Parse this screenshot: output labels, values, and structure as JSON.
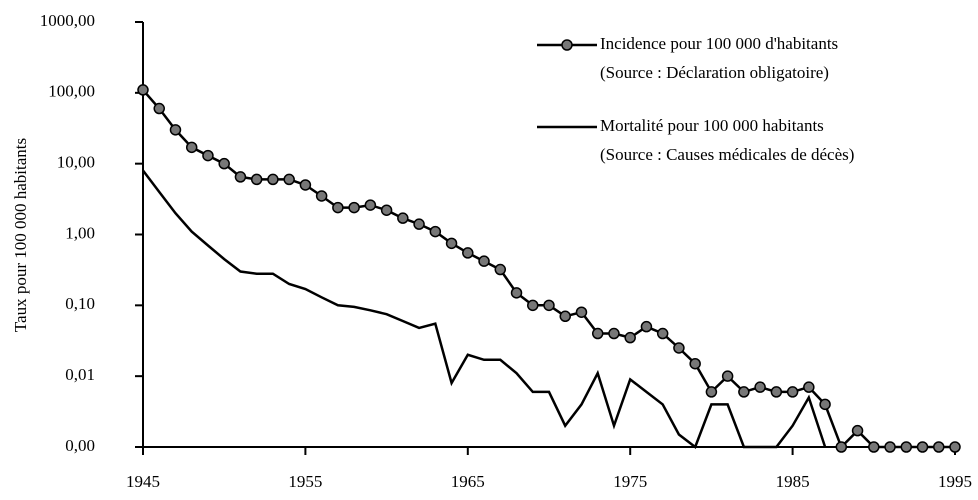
{
  "chart_data": {
    "type": "line",
    "y_label": "Taux pour 100 000 habitants",
    "log_scale": true,
    "x": [
      1945,
      1946,
      1947,
      1948,
      1949,
      1950,
      1951,
      1952,
      1953,
      1954,
      1955,
      1956,
      1957,
      1958,
      1959,
      1960,
      1961,
      1962,
      1963,
      1964,
      1965,
      1966,
      1967,
      1968,
      1969,
      1970,
      1971,
      1972,
      1973,
      1974,
      1975,
      1976,
      1977,
      1978,
      1979,
      1980,
      1981,
      1982,
      1983,
      1984,
      1985,
      1986,
      1987,
      1988,
      1989,
      1990,
      1991,
      1992,
      1993,
      1994,
      1995
    ],
    "series": [
      {
        "name": "Incidence pour 100 000 d'habitants",
        "source": "(Source : Déclaration obligatoire)",
        "color": "#000000",
        "marker": true,
        "values": [
          110,
          60,
          30,
          17,
          13,
          10,
          6.5,
          6,
          6,
          6,
          5,
          3.5,
          2.4,
          2.4,
          2.6,
          2.2,
          1.7,
          1.4,
          1.1,
          0.75,
          0.55,
          0.42,
          0.32,
          0.15,
          0.1,
          0.1,
          0.07,
          0.08,
          0.04,
          0.04,
          0.035,
          0.05,
          0.04,
          0.025,
          0.015,
          0.006,
          0.01,
          0.006,
          0.007,
          0.006,
          0.006,
          0.007,
          0.004,
          0.001,
          0.0017,
          0.001,
          0.001,
          0.001,
          0.001,
          0.001,
          0.001
        ]
      },
      {
        "name": "Mortalité pour 100 000 habitants",
        "source": "(Source : Causes médicales de décès)",
        "color": "#000000",
        "marker": false,
        "values": [
          8,
          4,
          2,
          1.1,
          0.7,
          0.45,
          0.3,
          0.28,
          0.28,
          0.2,
          0.17,
          0.13,
          0.1,
          0.095,
          0.085,
          0.075,
          0.06,
          0.048,
          0.055,
          0.008,
          0.02,
          0.017,
          0.017,
          0.011,
          0.006,
          0.006,
          0.002,
          0.004,
          0.011,
          0.002,
          0.009,
          0.006,
          0.004,
          0.0015,
          0.001,
          0.004,
          0.004,
          0.001,
          0.001,
          0.001,
          0.002,
          0.005,
          0.001,
          null,
          null,
          null,
          null,
          null,
          null,
          null,
          null
        ]
      }
    ],
    "xlim": [
      1945,
      1995
    ],
    "xticks": [
      1945,
      1955,
      1965,
      1975,
      1985,
      1995
    ],
    "ylim": [
      0.001,
      1000
    ],
    "yticks": [
      {
        "value": 0.001,
        "label": "0,00"
      },
      {
        "value": 0.01,
        "label": "0,01"
      },
      {
        "value": 0.1,
        "label": "0,10"
      },
      {
        "value": 1,
        "label": "1,00"
      },
      {
        "value": 10,
        "label": "10,00"
      },
      {
        "value": 100,
        "label": "100,00"
      },
      {
        "value": 1000,
        "label": "1000,00"
      }
    ],
    "legend": "top-right"
  }
}
